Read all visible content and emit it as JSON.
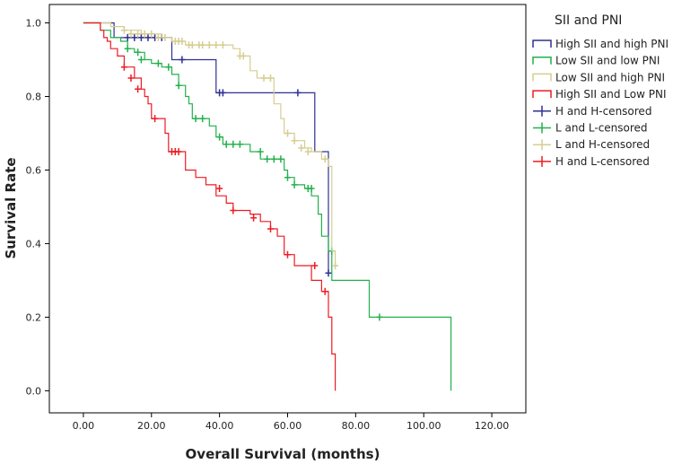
{
  "chart_data": {
    "type": "line",
    "title": "",
    "xlabel": "Overall Survival (months)",
    "ylabel": "Survival Rate",
    "xlim": [
      -10,
      130
    ],
    "ylim": [
      -0.06,
      1.05
    ],
    "x_ticks": [
      0,
      20,
      40,
      60,
      80,
      100,
      120
    ],
    "x_tick_labels": [
      "0.00",
      "20.00",
      "40.00",
      "60.00",
      "80.00",
      "100.00",
      "120.00"
    ],
    "y_ticks": [
      0,
      0.2,
      0.4,
      0.6,
      0.8,
      1.0
    ],
    "y_tick_labels": [
      "0.0",
      "0.2",
      "0.4",
      "0.6",
      "0.8",
      "1.0"
    ],
    "grid": false,
    "legend_title": "SII and PNI",
    "legend_position": "right",
    "series": [
      {
        "name": "High SII and high PNI",
        "censored_name": "H and H-censored",
        "color": "#2e3192",
        "steps": [
          [
            0,
            1.0
          ],
          [
            9,
            0.96
          ],
          [
            26,
            0.9
          ],
          [
            39,
            0.81
          ],
          [
            68,
            0.65
          ],
          [
            72,
            0.32
          ]
        ],
        "end_x": 72,
        "censored": [
          [
            13,
            0.96
          ],
          [
            15,
            0.96
          ],
          [
            17,
            0.96
          ],
          [
            19,
            0.96
          ],
          [
            21,
            0.96
          ],
          [
            23,
            0.96
          ],
          [
            29,
            0.9
          ],
          [
            40,
            0.81
          ],
          [
            41,
            0.81
          ],
          [
            63,
            0.81
          ],
          [
            72,
            0.32
          ]
        ]
      },
      {
        "name": "Low SII and low PNI",
        "censored_name": "L and L-censored",
        "color": "#22b14c",
        "steps": [
          [
            0,
            1.0
          ],
          [
            5,
            0.98
          ],
          [
            8,
            0.96
          ],
          [
            11,
            0.95
          ],
          [
            13,
            0.93
          ],
          [
            15,
            0.92
          ],
          [
            18,
            0.9
          ],
          [
            20,
            0.89
          ],
          [
            23,
            0.88
          ],
          [
            26,
            0.86
          ],
          [
            28,
            0.83
          ],
          [
            30,
            0.8
          ],
          [
            31,
            0.78
          ],
          [
            32,
            0.74
          ],
          [
            37,
            0.72
          ],
          [
            39,
            0.69
          ],
          [
            41,
            0.67
          ],
          [
            49,
            0.65
          ],
          [
            52,
            0.63
          ],
          [
            59,
            0.6
          ],
          [
            60,
            0.58
          ],
          [
            62,
            0.56
          ],
          [
            65,
            0.55
          ],
          [
            67,
            0.53
          ],
          [
            69,
            0.48
          ],
          [
            70,
            0.42
          ],
          [
            72,
            0.38
          ],
          [
            73,
            0.3
          ],
          [
            84,
            0.2
          ],
          [
            108,
            0.0
          ]
        ],
        "end_x": 108,
        "censored": [
          [
            13,
            0.93
          ],
          [
            16,
            0.92
          ],
          [
            17,
            0.9
          ],
          [
            22,
            0.89
          ],
          [
            25,
            0.88
          ],
          [
            28,
            0.83
          ],
          [
            33,
            0.74
          ],
          [
            35,
            0.74
          ],
          [
            40,
            0.69
          ],
          [
            42,
            0.67
          ],
          [
            44,
            0.67
          ],
          [
            46,
            0.67
          ],
          [
            52,
            0.65
          ],
          [
            54,
            0.63
          ],
          [
            56,
            0.63
          ],
          [
            58,
            0.63
          ],
          [
            60,
            0.58
          ],
          [
            62,
            0.56
          ],
          [
            66,
            0.55
          ],
          [
            67,
            0.55
          ],
          [
            73,
            0.38
          ],
          [
            87,
            0.2
          ]
        ]
      },
      {
        "name": "Low SII and high PNI",
        "censored_name": "L and H-censored",
        "color": "#d6cd91",
        "steps": [
          [
            0,
            1.0
          ],
          [
            8,
            0.99
          ],
          [
            12,
            0.98
          ],
          [
            17,
            0.97
          ],
          [
            23,
            0.96
          ],
          [
            26,
            0.95
          ],
          [
            30,
            0.94
          ],
          [
            44,
            0.93
          ],
          [
            46,
            0.91
          ],
          [
            49,
            0.87
          ],
          [
            51,
            0.85
          ],
          [
            56,
            0.78
          ],
          [
            58,
            0.74
          ],
          [
            59,
            0.7
          ],
          [
            62,
            0.68
          ],
          [
            65,
            0.66
          ],
          [
            67,
            0.65
          ],
          [
            70,
            0.63
          ],
          [
            72,
            0.61
          ],
          [
            73,
            0.38
          ],
          [
            74,
            0.34
          ]
        ],
        "end_x": 74,
        "censored": [
          [
            12,
            0.98
          ],
          [
            14,
            0.97
          ],
          [
            16,
            0.97
          ],
          [
            18,
            0.97
          ],
          [
            20,
            0.97
          ],
          [
            22,
            0.96
          ],
          [
            24,
            0.96
          ],
          [
            27,
            0.95
          ],
          [
            28,
            0.95
          ],
          [
            29,
            0.95
          ],
          [
            31,
            0.94
          ],
          [
            32,
            0.94
          ],
          [
            34,
            0.94
          ],
          [
            35,
            0.94
          ],
          [
            37,
            0.94
          ],
          [
            39,
            0.94
          ],
          [
            41,
            0.94
          ],
          [
            46,
            0.91
          ],
          [
            47,
            0.91
          ],
          [
            53,
            0.85
          ],
          [
            55,
            0.85
          ],
          [
            60,
            0.7
          ],
          [
            62,
            0.68
          ],
          [
            64,
            0.66
          ],
          [
            66,
            0.65
          ],
          [
            71,
            0.63
          ],
          [
            74,
            0.34
          ]
        ]
      },
      {
        "name": "High SII and Low PNI",
        "censored_name": "H and L-censored",
        "color": "#ed1c24",
        "steps": [
          [
            0,
            1.0
          ],
          [
            5,
            0.98
          ],
          [
            6,
            0.96
          ],
          [
            7,
            0.95
          ],
          [
            8,
            0.93
          ],
          [
            10,
            0.91
          ],
          [
            12,
            0.88
          ],
          [
            15,
            0.85
          ],
          [
            17,
            0.82
          ],
          [
            18,
            0.8
          ],
          [
            19,
            0.78
          ],
          [
            20,
            0.74
          ],
          [
            24,
            0.7
          ],
          [
            25,
            0.65
          ],
          [
            30,
            0.6
          ],
          [
            33,
            0.58
          ],
          [
            36,
            0.56
          ],
          [
            39,
            0.53
          ],
          [
            42,
            0.51
          ],
          [
            44,
            0.49
          ],
          [
            49,
            0.48
          ],
          [
            52,
            0.46
          ],
          [
            55,
            0.44
          ],
          [
            57,
            0.42
          ],
          [
            59,
            0.37
          ],
          [
            62,
            0.34
          ],
          [
            67,
            0.3
          ],
          [
            70,
            0.27
          ],
          [
            72,
            0.2
          ],
          [
            73,
            0.1
          ],
          [
            74,
            0.04
          ],
          [
            74,
            0.0
          ]
        ],
        "end_x": 74,
        "censored": [
          [
            12,
            0.88
          ],
          [
            14,
            0.85
          ],
          [
            16,
            0.82
          ],
          [
            21,
            0.74
          ],
          [
            26,
            0.65
          ],
          [
            27,
            0.65
          ],
          [
            28,
            0.65
          ],
          [
            40,
            0.55
          ],
          [
            44,
            0.49
          ],
          [
            50,
            0.47
          ],
          [
            55,
            0.44
          ],
          [
            60,
            0.37
          ],
          [
            68,
            0.34
          ],
          [
            71,
            0.27
          ]
        ]
      }
    ]
  }
}
